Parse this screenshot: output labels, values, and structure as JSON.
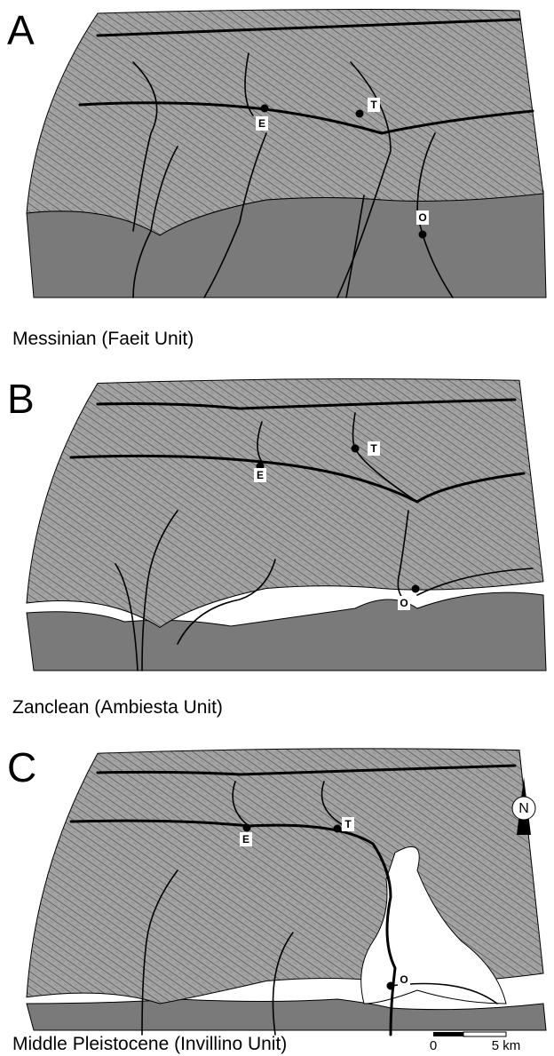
{
  "panels": [
    {
      "letter": "A",
      "caption": "Messinian (Faeit Unit)",
      "labels": [
        "E",
        "T",
        "O"
      ]
    },
    {
      "letter": "B",
      "caption": "Zanclean (Ambiesta Unit)",
      "labels": [
        "E",
        "T",
        "O"
      ]
    },
    {
      "letter": "C",
      "caption": "Middle Pleistocene (Invillino Unit)",
      "labels": [
        "E",
        "T",
        "O"
      ]
    }
  ],
  "north": "N",
  "scale_bar": {
    "start": "0",
    "end": "5 km"
  }
}
